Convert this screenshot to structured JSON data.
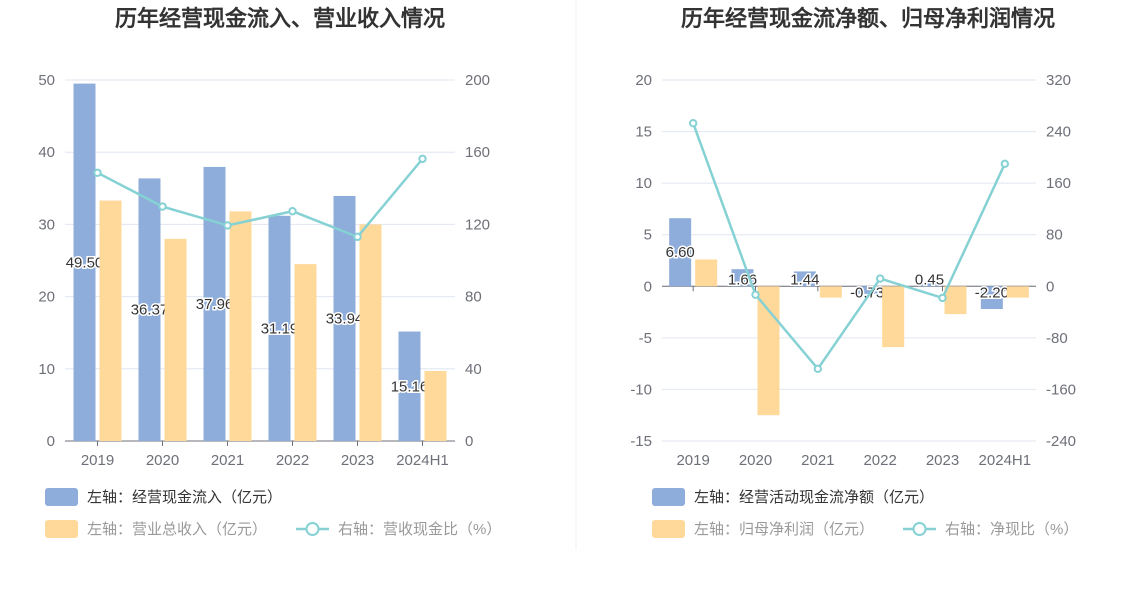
{
  "charts": [
    {
      "title": "历年经营现金流入、营业收入情况",
      "chart_data": {
        "type": "bar",
        "categories": [
          "2019",
          "2020",
          "2021",
          "2022",
          "2023",
          "2024H1"
        ],
        "left_axis": {
          "min": 0,
          "max": 50,
          "ticks": [
            "0",
            "10",
            "20",
            "30",
            "40",
            "50"
          ]
        },
        "right_axis": {
          "min": 0,
          "max": 200,
          "ticks": [
            "0",
            "40",
            "80",
            "120",
            "160",
            "200"
          ]
        },
        "series": [
          {
            "name": "左轴：经营现金流入（亿元）",
            "kind": "bar",
            "axis": "left",
            "color": "#8eadda",
            "values": [
              49.5,
              36.37,
              37.96,
              31.19,
              33.94,
              15.16
            ],
            "labels": [
              "49.50",
              "36.37",
              "37.96",
              "31.19",
              "33.94",
              "15.16"
            ]
          },
          {
            "name": "左轴：营业总收入（亿元）",
            "kind": "bar",
            "axis": "left",
            "color": "#ffd99a",
            "values": [
              33.3,
              28.0,
              31.8,
              24.5,
              30.0,
              9.7
            ]
          },
          {
            "name": "右轴：营收现金比（%）",
            "kind": "line",
            "axis": "right",
            "color": "#85d1d4",
            "values": [
              148.6,
              129.9,
              119.4,
              127.3,
              113.1,
              156.3
            ]
          }
        ],
        "legend_position": "bottom-left",
        "grid": true
      }
    },
    {
      "title": "历年经营现金流净额、归母净利润情况",
      "chart_data": {
        "type": "bar",
        "categories": [
          "2019",
          "2020",
          "2021",
          "2022",
          "2023",
          "2024H1"
        ],
        "left_axis": {
          "min": -15,
          "max": 20,
          "ticks": [
            "-15",
            "-10",
            "-5",
            "0",
            "5",
            "10",
            "15",
            "20"
          ]
        },
        "right_axis": {
          "min": -240,
          "max": 320,
          "ticks": [
            "-240",
            "-160",
            "-80",
            "0",
            "80",
            "160",
            "240",
            "320"
          ]
        },
        "series": [
          {
            "name": "左轴：经营活动现金流净额（亿元）",
            "kind": "bar",
            "axis": "left",
            "color": "#8eadda",
            "values": [
              6.6,
              1.66,
              1.44,
              -0.73,
              0.45,
              -2.2
            ],
            "labels": [
              "6.60",
              "1.66",
              "1.44",
              "-0.73",
              "0.45",
              "-2.20"
            ]
          },
          {
            "name": "左轴：归母净利润（亿元）",
            "kind": "bar",
            "axis": "left",
            "color": "#ffd99a",
            "values": [
              2.6,
              -12.5,
              -1.1,
              -5.9,
              -2.7,
              -1.1
            ]
          },
          {
            "name": "右轴：净现比（%）",
            "kind": "line",
            "axis": "right",
            "color": "#85d1d4",
            "values": [
              253,
              -13,
              -128,
              12,
              -18,
              190
            ]
          }
        ],
        "legend_position": "bottom-left",
        "grid": true
      }
    }
  ]
}
